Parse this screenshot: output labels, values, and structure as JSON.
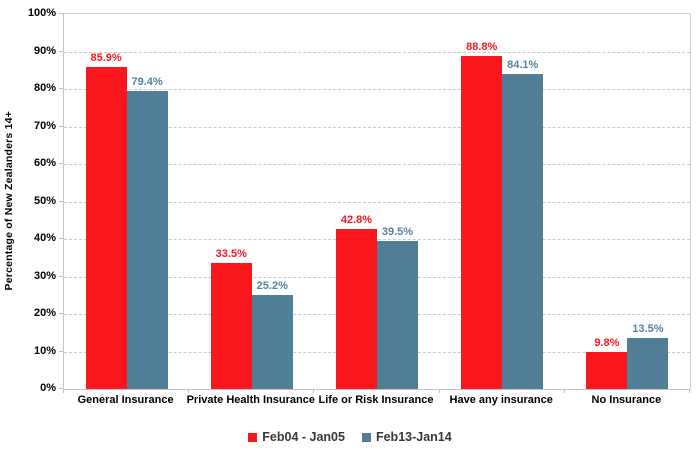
{
  "chart_data": {
    "type": "bar",
    "title": "",
    "xlabel": "",
    "ylabel": "Percentage of New Zealanders 14+",
    "ylim": [
      0,
      100
    ],
    "y_ticks": [
      "0%",
      "10%",
      "20%",
      "30%",
      "40%",
      "50%",
      "60%",
      "70%",
      "80%",
      "90%",
      "100%"
    ],
    "grid": "horizontal-dashed",
    "legend_position": "bottom",
    "categories": [
      "General Insurance",
      "Private Health Insurance",
      "Life or Risk Insurance",
      "Have any insurance",
      "No Insurance"
    ],
    "series": [
      {
        "name": "Feb04 - Jan05",
        "color": "#f9161d",
        "label_color": "#f9161d",
        "values": [
          85.9,
          33.5,
          42.8,
          88.8,
          9.8
        ],
        "value_labels": [
          "85.9%",
          "33.5%",
          "42.8%",
          "88.8%",
          "9.8%"
        ]
      },
      {
        "name": "Feb13-Jan14",
        "color": "#4f7e96",
        "label_color": "#54829f",
        "values": [
          79.4,
          25.2,
          39.5,
          84.1,
          13.5
        ],
        "value_labels": [
          "79.4%",
          "25.2%",
          "39.5%",
          "84.1%",
          "13.5%"
        ]
      }
    ]
  }
}
